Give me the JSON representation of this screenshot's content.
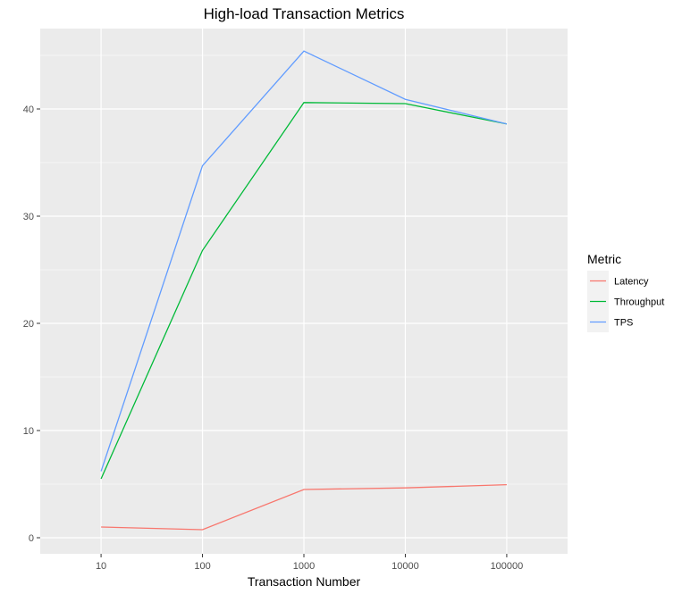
{
  "chart_data": {
    "type": "line",
    "title": "High-load Transaction Metrics",
    "xlabel": "Transaction Number",
    "ylabel": "",
    "categories": [
      "10",
      "100",
      "1000",
      "10000",
      "100000"
    ],
    "x_scale": "log10",
    "ylim": [
      -1.5,
      47.5
    ],
    "yticks": [
      0,
      10,
      20,
      30,
      40
    ],
    "grid": true,
    "legend_title": "Metric",
    "legend_position": "right",
    "series": [
      {
        "name": "Latency",
        "color": "#F8766D",
        "values": [
          1.0,
          0.75,
          4.5,
          4.65,
          4.95
        ]
      },
      {
        "name": "Throughput",
        "color": "#00BA38",
        "values": [
          5.5,
          26.8,
          40.6,
          40.5,
          38.6
        ]
      },
      {
        "name": "TPS",
        "color": "#619CFF",
        "values": [
          6.2,
          34.7,
          45.4,
          40.9,
          38.6
        ]
      }
    ]
  }
}
